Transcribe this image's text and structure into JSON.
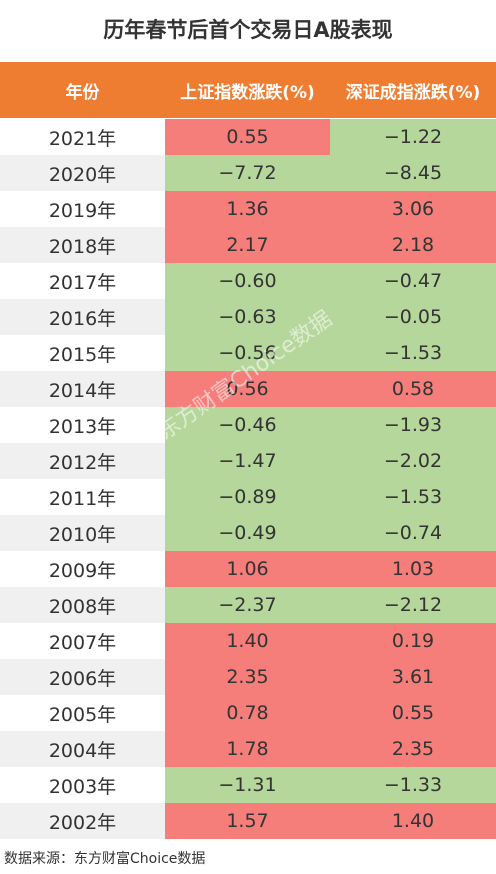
{
  "title": "历年春节后首个交易日A股表现",
  "table": {
    "header": [
      "年份",
      "上证指数涨跌(%)",
      "深证成指涨跌(%)"
    ],
    "rows": [
      [
        "2021年",
        "0.55",
        "−1.22"
      ],
      [
        "2020年",
        "−7.72",
        "−8.45"
      ],
      [
        "2019年",
        "1.36",
        "3.06"
      ],
      [
        "2018年",
        "2.17",
        "2.18"
      ],
      [
        "2017年",
        "−0.60",
        "−0.47"
      ],
      [
        "2016年",
        "−0.63",
        "−0.05"
      ],
      [
        "2015年",
        "−0.56",
        "−1.53"
      ],
      [
        "2014年",
        "0.56",
        "0.58"
      ],
      [
        "2013年",
        "−0.46",
        "−1.93"
      ],
      [
        "2012年",
        "−1.47",
        "−2.02"
      ],
      [
        "2011年",
        "−0.89",
        "−1.53"
      ],
      [
        "2010年",
        "−0.49",
        "−0.74"
      ],
      [
        "2009年",
        "1.06",
        "1.03"
      ],
      [
        "2008年",
        "−2.37",
        "−2.12"
      ],
      [
        "2007年",
        "1.40",
        "0.19"
      ],
      [
        "2006年",
        "2.35",
        "3.61"
      ],
      [
        "2005年",
        "0.78",
        "0.55"
      ],
      [
        "2004年",
        "1.78",
        "2.35"
      ],
      [
        "2003年",
        "−1.31",
        "−1.33"
      ],
      [
        "2002年",
        "1.57",
        "1.40"
      ]
    ],
    "colors": {
      "header": "#ee7d31",
      "up": "#f57d7a",
      "down": "#b5d79b",
      "year_odd": "#ffffff",
      "year_even": "#f0f0f0"
    }
  },
  "watermark": "东方财富Choice数据",
  "source": "数据来源：东方财富Choice数据"
}
